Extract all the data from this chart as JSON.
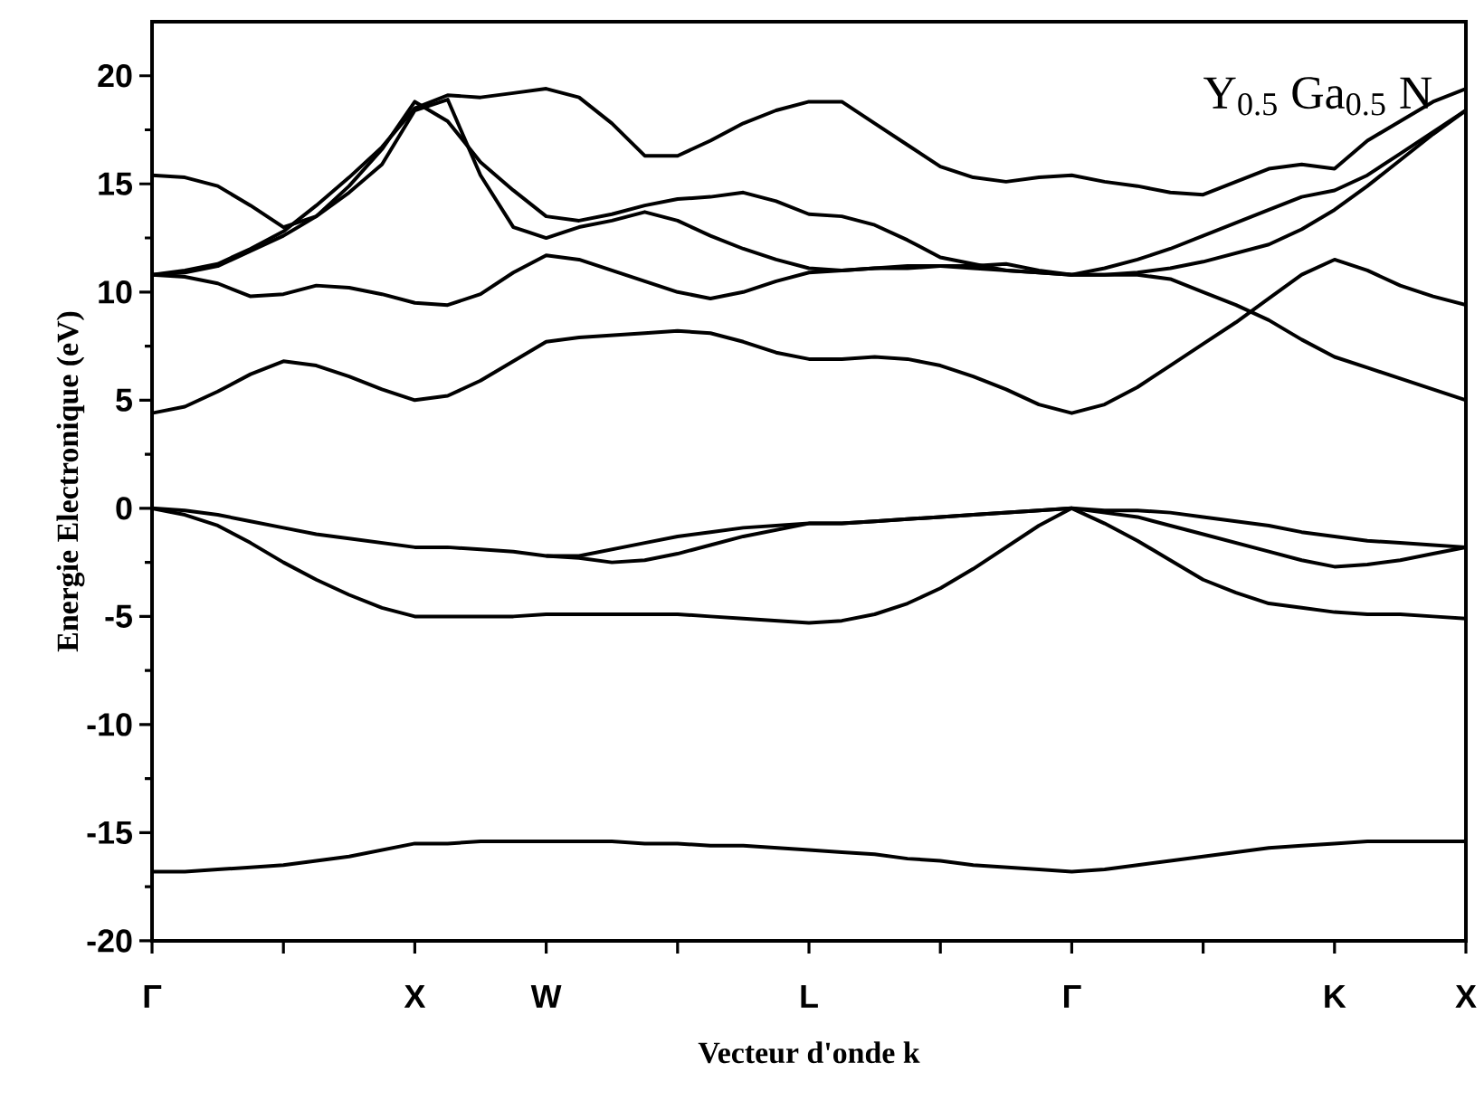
{
  "chart_data": {
    "type": "line",
    "xlabel": "Vecteur d'onde k",
    "ylabel": "Energie Electronique (eV)",
    "annotations": [
      "Y$_{0.5}$ Ga$_{0.5}$ N"
    ],
    "ylim": [
      -20,
      22.5
    ],
    "categories": [
      "Γ",
      null,
      null,
      null,
      null,
      null,
      null,
      null,
      "X",
      null,
      null,
      null,
      "W",
      null,
      null,
      null,
      null,
      null,
      null,
      null,
      "L",
      null,
      null,
      null,
      null,
      null,
      null,
      null,
      "Γ",
      null,
      null,
      null,
      null,
      null,
      null,
      null,
      "K",
      null,
      null,
      null,
      "X"
    ],
    "yticks": [
      -20,
      -15,
      -10,
      -5,
      0,
      5,
      10,
      15,
      20
    ],
    "marker": "none",
    "line_style": "solid",
    "series": [
      {
        "color": "#000000",
        "values": [
          -16.8,
          -16.8,
          -16.7,
          -16.6,
          -16.5,
          -16.3,
          -16.1,
          -15.8,
          -15.5,
          -15.5,
          -15.4,
          -15.4,
          -15.4,
          -15.4,
          -15.4,
          -15.5,
          -15.5,
          -15.6,
          -15.6,
          -15.7,
          -15.8,
          -15.9,
          -16.0,
          -16.2,
          -16.3,
          -16.5,
          -16.6,
          -16.7,
          -16.8,
          -16.7,
          -16.5,
          -16.3,
          -16.1,
          -15.9,
          -15.7,
          -15.6,
          -15.5,
          -15.4,
          -15.4,
          -15.4,
          -15.4
        ]
      },
      {
        "color": "#000000",
        "values": [
          0,
          -0.3,
          -0.8,
          -1.6,
          -2.5,
          -3.3,
          -4.0,
          -4.6,
          -5.0,
          -5.0,
          -5.0,
          -5.0,
          -4.9,
          -4.9,
          -4.9,
          -4.9,
          -4.9,
          -5.0,
          -5.1,
          -5.2,
          -5.3,
          -5.2,
          -4.9,
          -4.4,
          -3.7,
          -2.8,
          -1.8,
          -0.8,
          0,
          -0.1,
          -0.1,
          -0.2,
          -0.4,
          -0.6,
          -0.8,
          -1.1,
          -1.3,
          -1.5,
          -1.6,
          -1.7,
          -1.8
        ]
      },
      {
        "color": "#000000",
        "values": [
          0,
          -0.1,
          -0.3,
          -0.6,
          -0.9,
          -1.2,
          -1.4,
          -1.6,
          -1.8,
          -1.8,
          -1.9,
          -2.0,
          -2.2,
          -2.2,
          -1.9,
          -1.6,
          -1.3,
          -1.1,
          -0.9,
          -0.8,
          -0.7,
          -0.7,
          -0.6,
          -0.5,
          -0.4,
          -0.3,
          -0.2,
          -0.1,
          0,
          -0.7,
          -1.5,
          -2.4,
          -3.3,
          -3.9,
          -4.4,
          -4.6,
          -4.8,
          -4.9,
          -4.9,
          -5.0,
          -5.1
        ]
      },
      {
        "color": "#000000",
        "values": [
          null,
          null,
          null,
          null,
          null,
          null,
          null,
          null,
          null,
          null,
          null,
          null,
          -2.2,
          -2.3,
          -2.5,
          -2.4,
          -2.1,
          -1.7,
          -1.3,
          -1.0,
          -0.7,
          -0.7,
          -0.6,
          -0.5,
          -0.4,
          -0.3,
          -0.2,
          -0.1,
          0,
          -0.2,
          -0.4,
          -0.8,
          -1.2,
          -1.6,
          -2.0,
          -2.4,
          -2.7,
          -2.6,
          -2.4,
          -2.1,
          -1.8
        ]
      },
      {
        "color": "#000000",
        "values": [
          4.4,
          4.7,
          5.4,
          6.2,
          6.8,
          6.6,
          6.1,
          5.5,
          5.0,
          5.2,
          5.9,
          6.8,
          7.7,
          7.9,
          8.0,
          8.1,
          8.2,
          8.1,
          7.7,
          7.2,
          6.9,
          6.9,
          7.0,
          6.9,
          6.6,
          6.1,
          5.5,
          4.8,
          4.4,
          4.8,
          5.6,
          6.6,
          7.6,
          8.6,
          9.7,
          10.8,
          11.5,
          11.0,
          10.3,
          9.8,
          9.4
        ]
      },
      {
        "color": "#000000",
        "values": [
          10.8,
          10.7,
          10.4,
          9.8,
          9.9,
          10.3,
          10.2,
          9.9,
          9.5,
          9.4,
          9.9,
          10.9,
          11.7,
          11.5,
          11.0,
          10.5,
          10.0,
          9.7,
          10.0,
          10.5,
          10.9,
          11.0,
          11.1,
          11.2,
          11.2,
          11.1,
          11.0,
          10.9,
          10.8,
          10.8,
          10.8,
          10.6,
          10.0,
          9.4,
          8.7,
          7.8,
          7.0,
          6.5,
          6.0,
          5.5,
          5.0
        ]
      },
      {
        "color": "#000000",
        "values": [
          15.4,
          15.3,
          14.9,
          14.0,
          13.0,
          13.5,
          14.9,
          16.6,
          18.8,
          17.9,
          16.0,
          14.7,
          13.5,
          13.3,
          13.6,
          14.0,
          14.3,
          14.4,
          14.6,
          14.2,
          13.6,
          13.5,
          13.1,
          12.4,
          11.6,
          11.3,
          11.0,
          10.9,
          10.8,
          11.1,
          11.5,
          12.0,
          12.6,
          13.2,
          13.8,
          14.4,
          14.7,
          15.4,
          16.4,
          17.4,
          18.4
        ]
      },
      {
        "color": "#000000",
        "values": [
          10.8,
          11.0,
          11.3,
          12.0,
          12.8,
          14.0,
          15.3,
          16.7,
          18.5,
          19.1,
          19.0,
          19.2,
          19.4,
          19.0,
          17.8,
          16.3,
          16.3,
          17.0,
          17.8,
          18.4,
          18.8,
          18.8,
          17.8,
          16.8,
          15.8,
          15.3,
          15.1,
          15.3,
          15.4,
          15.1,
          14.9,
          14.6,
          14.5,
          15.1,
          15.7,
          15.9,
          15.7,
          17.0,
          17.9,
          18.8,
          19.4
        ]
      },
      {
        "color": "#000000",
        "values": [
          10.8,
          10.9,
          11.2,
          11.9,
          12.6,
          13.5,
          14.6,
          15.9,
          18.4,
          18.9,
          15.4,
          13.0,
          12.5,
          13.0,
          13.3,
          13.7,
          13.3,
          12.6,
          12.0,
          11.5,
          11.1,
          11.0,
          11.1,
          11.1,
          11.2,
          11.2,
          11.3,
          11.0,
          10.8,
          10.8,
          10.9,
          11.1,
          11.4,
          11.8,
          12.2,
          12.9,
          13.8,
          14.9,
          16.1,
          17.3,
          18.4
        ]
      }
    ]
  }
}
